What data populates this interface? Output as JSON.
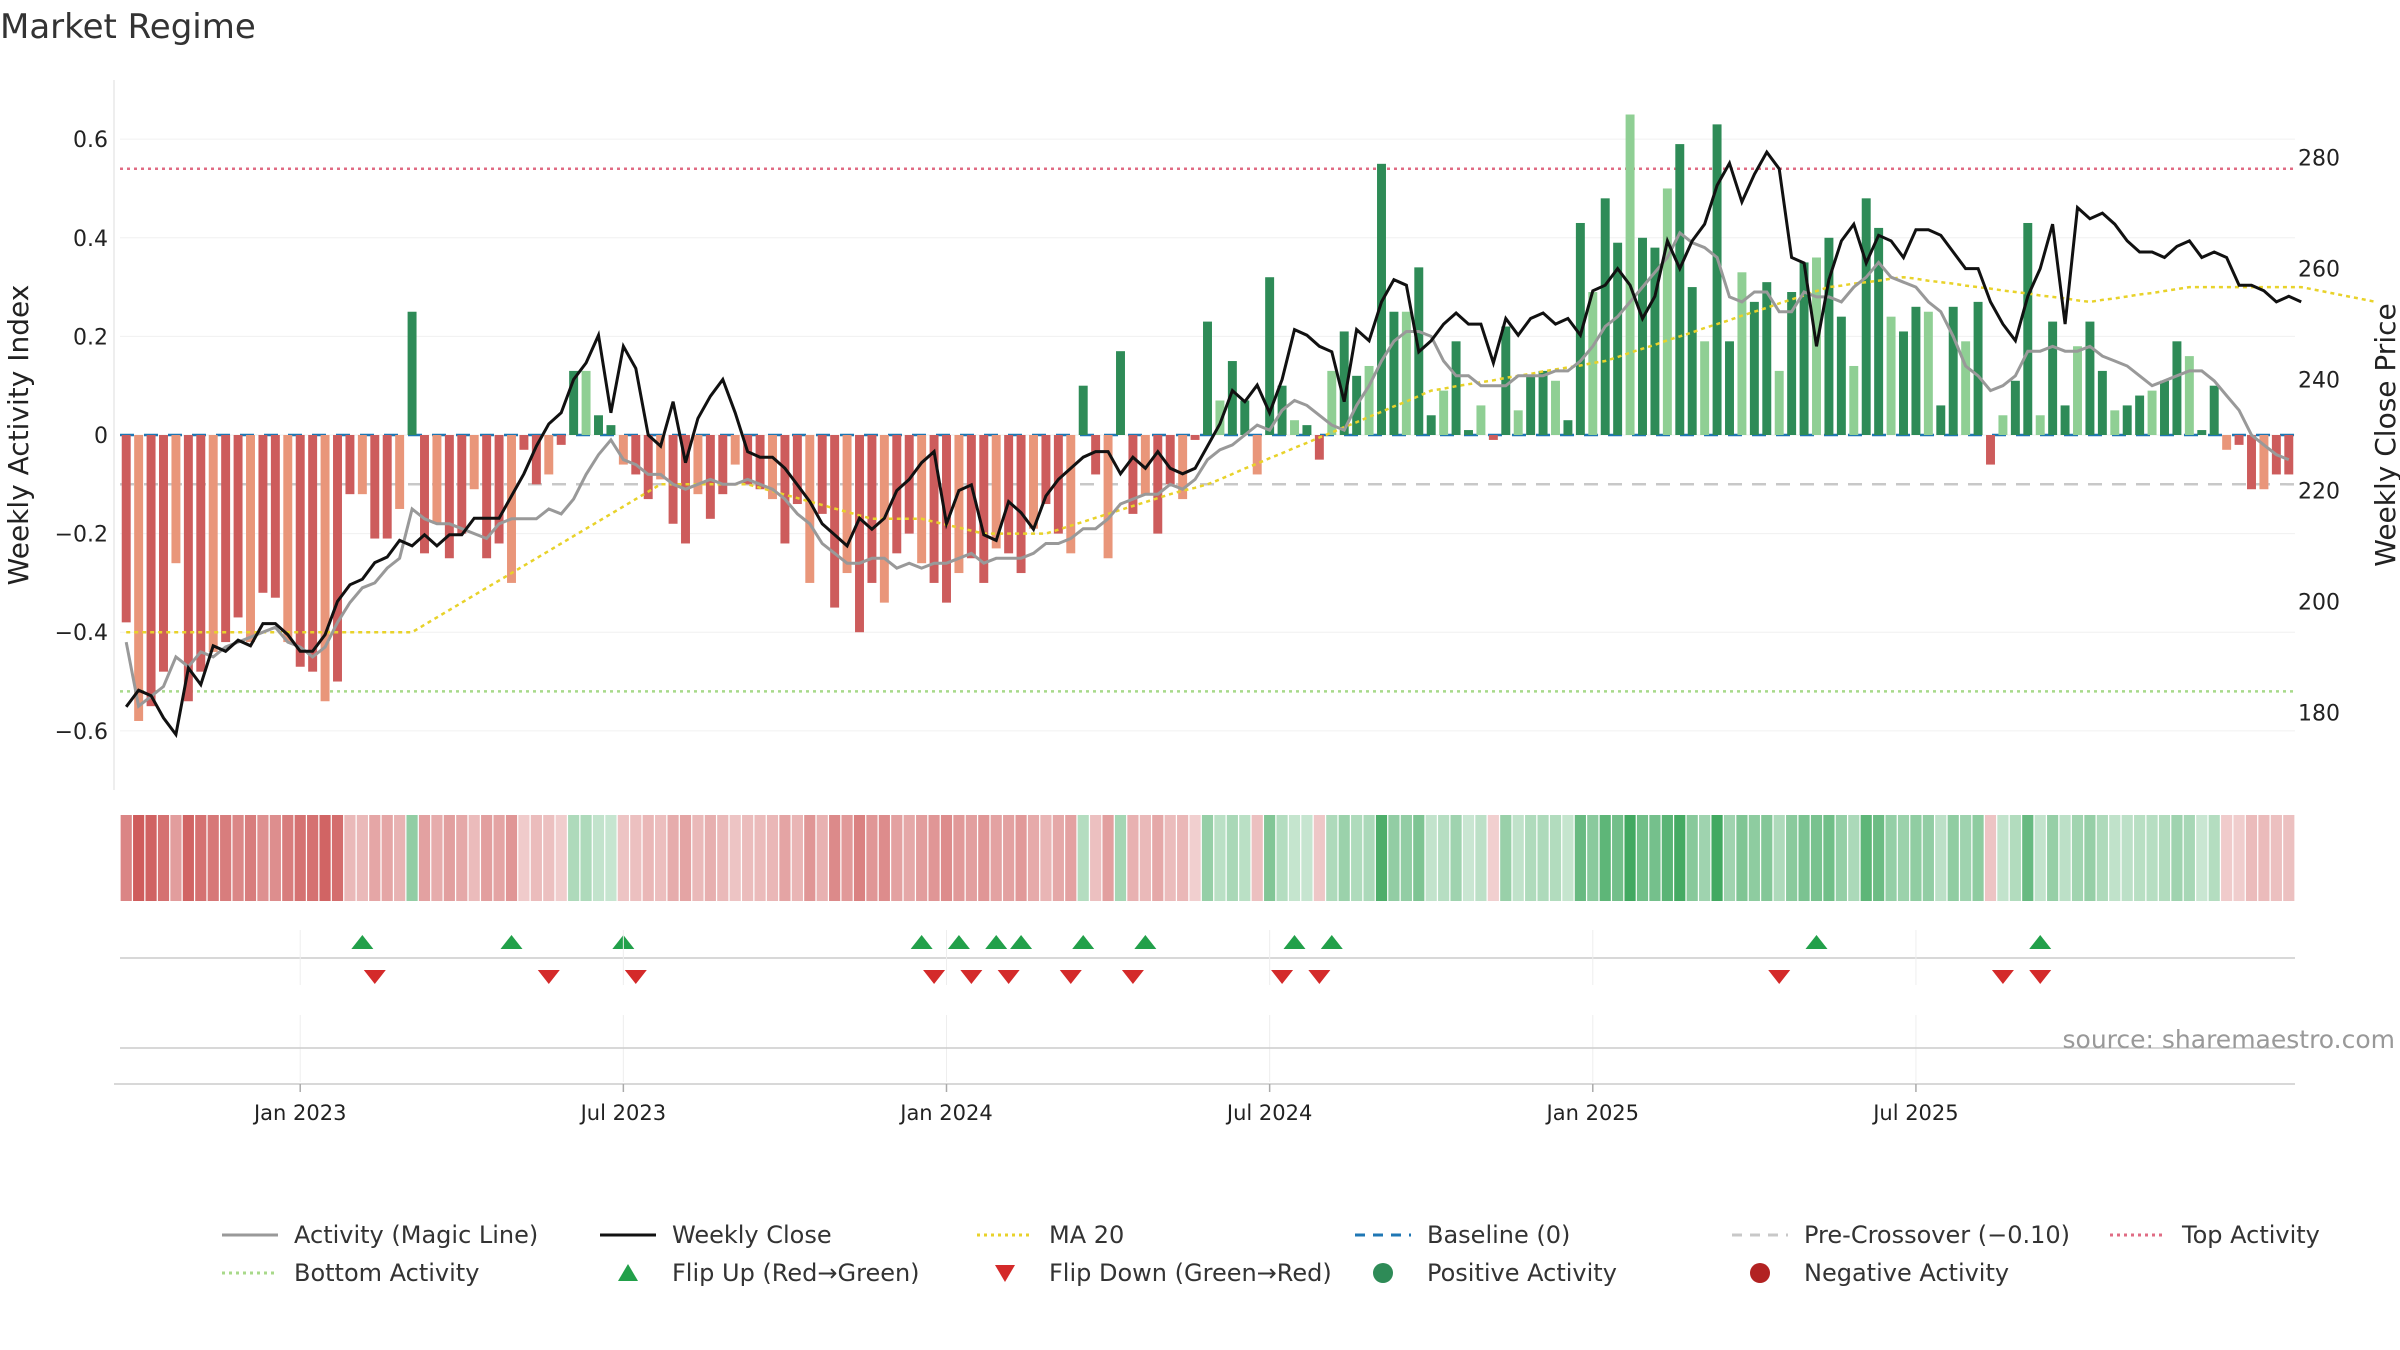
{
  "title": "Market Regime",
  "source": "source: sharemaestro.com",
  "colors": {
    "pos_strong": "#2e8b57",
    "pos_light": "#8fcf94",
    "neg_strong": "#cd5c5c",
    "neg_light": "#e9967a",
    "close": "#111111",
    "magic": "#999999",
    "ma": "#e8d22a",
    "baseline": "#1f77b4",
    "precross": "#c8c8c8",
    "top": "#e06c84",
    "bottom": "#a8d98a",
    "flip_up": "#22a04a",
    "flip_down": "#d42a2a"
  },
  "chart_data": {
    "type": "bar",
    "title": "Market Regime",
    "ylabel_left": "Weekly Activity Index",
    "ylabel_right": "Weekly Close Price",
    "ylim_left": [
      -0.72,
      0.72
    ],
    "ylim_right": [
      166,
      294
    ],
    "yticks_left": [
      "-0.6",
      "-0.4",
      "-0.2",
      "0",
      "0.2",
      "0.4",
      "0.6"
    ],
    "yticks_right": [
      "180",
      "200",
      "220",
      "240",
      "260",
      "280"
    ],
    "x_labels": [
      "Jan 2023",
      "Jul 2023",
      "Jan 2024",
      "Jul 2024",
      "Jan 2025",
      "Jul 2025"
    ],
    "levels": {
      "top_activity": 0.54,
      "bottom_activity": -0.52,
      "pre_crossover": -0.1,
      "baseline": 0
    },
    "grid": true,
    "legend_position": "bottom",
    "activity": [
      -0.38,
      -0.58,
      -0.55,
      -0.48,
      -0.26,
      -0.54,
      -0.48,
      -0.44,
      -0.42,
      -0.37,
      -0.42,
      -0.32,
      -0.33,
      -0.42,
      -0.47,
      -0.48,
      -0.54,
      -0.5,
      -0.12,
      -0.12,
      -0.21,
      -0.21,
      -0.15,
      0.25,
      -0.24,
      -0.18,
      -0.25,
      -0.2,
      -0.11,
      -0.25,
      -0.22,
      -0.3,
      -0.03,
      -0.1,
      -0.08,
      -0.02,
      0.13,
      0.13,
      0.04,
      0.02,
      -0.06,
      -0.08,
      -0.13,
      -0.09,
      -0.18,
      -0.22,
      -0.12,
      -0.17,
      -0.12,
      -0.06,
      -0.1,
      -0.11,
      -0.13,
      -0.22,
      -0.14,
      -0.3,
      -0.16,
      -0.35,
      -0.28,
      -0.4,
      -0.3,
      -0.34,
      -0.24,
      -0.2,
      -0.26,
      -0.3,
      -0.34,
      -0.28,
      -0.25,
      -0.3,
      -0.23,
      -0.24,
      -0.28,
      -0.19,
      -0.14,
      -0.2,
      -0.24,
      0.1,
      -0.08,
      -0.25,
      0.17,
      -0.16,
      -0.12,
      -0.2,
      -0.1,
      -0.13,
      -0.01,
      0.23,
      0.07,
      0.15,
      0.07,
      -0.08,
      0.32,
      0.1,
      0.03,
      0.02,
      -0.05,
      0.13,
      0.21,
      0.12,
      0.14,
      0.55,
      0.25,
      0.25,
      0.34,
      0.04,
      0.09,
      0.19,
      0.01,
      0.06,
      -0.01,
      0.22,
      0.05,
      0.12,
      0.13,
      0.11,
      0.03,
      0.43,
      0.29,
      0.48,
      0.39,
      0.65,
      0.4,
      0.38,
      0.5,
      0.59,
      0.3,
      0.19,
      0.63,
      0.19,
      0.33,
      0.27,
      0.31,
      0.13,
      0.29,
      0.35,
      0.36,
      0.4,
      0.24,
      0.14,
      0.48,
      0.42,
      0.24,
      0.21,
      0.26,
      0.25,
      0.06,
      0.26,
      0.19,
      0.27,
      -0.06,
      0.04,
      0.11,
      0.43,
      0.04,
      0.23,
      0.06,
      0.18,
      0.23,
      0.13,
      0.05,
      0.06,
      0.08,
      0.09,
      0.11,
      0.19,
      0.16,
      0.01,
      0.1,
      -0.03,
      -0.02,
      -0.11,
      -0.11,
      -0.08,
      -0.08
    ],
    "close": [
      181,
      184,
      183,
      179,
      176,
      188,
      185,
      192,
      191,
      193,
      192,
      196,
      196,
      194,
      191,
      191,
      194,
      200,
      203,
      204,
      207,
      208,
      211,
      210,
      212,
      210,
      212,
      212,
      215,
      215,
      215,
      219,
      223,
      228,
      232,
      234,
      240,
      243,
      248,
      234,
      246,
      242,
      230,
      228,
      236,
      225,
      233,
      237,
      240,
      234,
      227,
      226,
      226,
      224,
      221,
      218,
      214,
      212,
      210,
      215,
      213,
      215,
      220,
      222,
      225,
      227,
      214,
      220,
      221,
      212,
      211,
      218,
      216,
      213,
      219,
      222,
      224,
      226,
      227,
      227,
      223,
      226,
      224,
      227,
      224,
      223,
      224,
      228,
      232,
      238,
      236,
      239,
      234,
      240,
      249,
      248,
      246,
      245,
      236,
      249,
      247,
      254,
      258,
      257,
      245,
      247,
      250,
      252,
      250,
      250,
      243,
      251,
      248,
      251,
      252,
      250,
      251,
      248,
      256,
      257,
      260,
      257,
      251,
      255,
      265,
      260,
      265,
      268,
      275,
      279,
      272,
      277,
      281,
      278,
      262,
      261,
      246,
      258,
      265,
      268,
      261,
      266,
      265,
      262,
      267,
      267,
      266,
      263,
      260,
      260,
      254,
      250,
      247,
      255,
      260,
      268,
      250,
      271,
      269,
      270,
      268,
      265,
      263,
      263,
      262,
      264,
      265,
      262,
      263,
      262,
      257,
      257,
      256,
      254,
      255,
      254
    ],
    "magic": [
      -0.42,
      -0.55,
      -0.53,
      -0.51,
      -0.45,
      -0.47,
      -0.44,
      -0.45,
      -0.43,
      -0.42,
      -0.41,
      -0.4,
      -0.39,
      -0.42,
      -0.43,
      -0.45,
      -0.43,
      -0.38,
      -0.34,
      -0.31,
      -0.3,
      -0.27,
      -0.25,
      -0.15,
      -0.17,
      -0.18,
      -0.18,
      -0.19,
      -0.2,
      -0.21,
      -0.18,
      -0.17,
      -0.17,
      -0.17,
      -0.15,
      -0.16,
      -0.13,
      -0.08,
      -0.04,
      -0.01,
      -0.05,
      -0.06,
      -0.08,
      -0.08,
      -0.1,
      -0.11,
      -0.1,
      -0.09,
      -0.1,
      -0.1,
      -0.09,
      -0.1,
      -0.11,
      -0.13,
      -0.16,
      -0.18,
      -0.22,
      -0.24,
      -0.26,
      -0.26,
      -0.25,
      -0.25,
      -0.27,
      -0.26,
      -0.27,
      -0.26,
      -0.26,
      -0.25,
      -0.24,
      -0.26,
      -0.25,
      -0.25,
      -0.25,
      -0.24,
      -0.22,
      -0.22,
      -0.21,
      -0.19,
      -0.19,
      -0.17,
      -0.14,
      -0.13,
      -0.12,
      -0.12,
      -0.1,
      -0.11,
      -0.09,
      -0.05,
      -0.03,
      -0.02,
      0.0,
      0.02,
      0.01,
      0.05,
      0.07,
      0.06,
      0.04,
      0.02,
      0.01,
      0.06,
      0.1,
      0.15,
      0.19,
      0.21,
      0.21,
      0.2,
      0.15,
      0.12,
      0.12,
      0.1,
      0.1,
      0.1,
      0.12,
      0.12,
      0.12,
      0.13,
      0.13,
      0.15,
      0.18,
      0.22,
      0.24,
      0.27,
      0.3,
      0.33,
      0.36,
      0.41,
      0.39,
      0.38,
      0.36,
      0.28,
      0.27,
      0.29,
      0.29,
      0.25,
      0.25,
      0.29,
      0.28,
      0.28,
      0.27,
      0.3,
      0.32,
      0.35,
      0.32,
      0.31,
      0.3,
      0.27,
      0.25,
      0.2,
      0.14,
      0.12,
      0.09,
      0.1,
      0.12,
      0.17,
      0.17,
      0.18,
      0.17,
      0.17,
      0.18,
      0.16,
      0.15,
      0.14,
      0.12,
      0.1,
      0.11,
      0.12,
      0.13,
      0.13,
      0.11,
      0.08,
      0.05,
      0.0,
      -0.02,
      -0.04,
      -0.05
    ],
    "ma20": [
      -0.4,
      -0.4,
      -0.4,
      -0.4,
      -0.4,
      -0.4,
      -0.4,
      -0.4,
      -0.4,
      -0.4,
      -0.4,
      -0.4,
      -0.4,
      -0.4,
      -0.4,
      -0.4,
      -0.4,
      -0.4,
      -0.4,
      -0.4,
      -0.4,
      -0.4,
      -0.4,
      -0.4,
      -0.385,
      -0.37,
      -0.355,
      -0.34,
      -0.325,
      -0.31,
      -0.295,
      -0.28,
      -0.265,
      -0.25,
      -0.235,
      -0.22,
      -0.205,
      -0.19,
      -0.175,
      -0.16,
      -0.145,
      -0.13,
      -0.115,
      -0.1,
      -0.1,
      -0.1,
      -0.1,
      -0.1,
      -0.1,
      -0.1,
      -0.1,
      -0.107,
      -0.114,
      -0.121,
      -0.128,
      -0.135,
      -0.142,
      -0.149,
      -0.156,
      -0.163,
      -0.17,
      -0.17,
      -0.17,
      -0.17,
      -0.17,
      -0.176,
      -0.182,
      -0.188,
      -0.194,
      -0.2,
      -0.2,
      -0.2,
      -0.2,
      -0.2,
      -0.2,
      -0.192,
      -0.184,
      -0.176,
      -0.168,
      -0.16,
      -0.152,
      -0.144,
      -0.136,
      -0.128,
      -0.12,
      -0.113,
      -0.107,
      -0.1,
      -0.09,
      -0.079,
      -0.068,
      -0.058,
      -0.047,
      -0.037,
      -0.026,
      -0.016,
      -0.005,
      0.005,
      0.016,
      0.026,
      0.037,
      0.047,
      0.058,
      0.068,
      0.079,
      0.09,
      0.094,
      0.099,
      0.103,
      0.107,
      0.111,
      0.116,
      0.12,
      0.124,
      0.129,
      0.133,
      0.137,
      0.141,
      0.146,
      0.15,
      0.158,
      0.167,
      0.175,
      0.183,
      0.192,
      0.2,
      0.208,
      0.217,
      0.225,
      0.233,
      0.242,
      0.25,
      0.258,
      0.267,
      0.275,
      0.283,
      0.292,
      0.3,
      0.303,
      0.307,
      0.31,
      0.313,
      0.317,
      0.32,
      0.317,
      0.313,
      0.31,
      0.307,
      0.303,
      0.3,
      0.297,
      0.293,
      0.29,
      0.287,
      0.283,
      0.28,
      0.277,
      0.273,
      0.27,
      0.274,
      0.277,
      0.281,
      0.285,
      0.288,
      0.292,
      0.296,
      0.3,
      0.3,
      0.3,
      0.3,
      0.3,
      0.3,
      0.3,
      0.3,
      0.3,
      0.3,
      0.295,
      0.29,
      0.285,
      0.28,
      0.275,
      0.27
    ],
    "intensity": [
      3,
      3,
      3,
      3,
      3,
      3,
      3,
      3,
      3,
      3,
      3,
      3,
      3,
      3,
      3,
      3,
      3,
      3,
      1,
      1,
      1,
      1,
      1,
      2,
      1,
      1,
      1,
      1,
      1,
      1,
      1,
      1,
      1,
      1,
      1,
      1,
      2,
      2,
      1,
      1,
      1,
      1,
      1,
      1,
      1,
      1,
      1,
      1,
      1,
      1,
      1,
      1,
      1,
      1,
      1,
      1,
      1,
      1,
      1,
      1,
      1,
      1,
      1,
      1,
      1,
      1,
      1,
      1,
      1,
      1,
      1,
      1,
      1,
      1,
      1,
      1,
      1,
      1,
      1,
      1,
      1,
      1,
      1,
      1,
      1,
      1,
      1,
      1,
      1,
      1,
      1,
      1,
      1,
      1,
      1,
      1,
      1,
      1,
      1,
      1,
      1,
      1,
      1,
      1,
      1,
      1,
      1,
      1,
      1,
      1,
      1,
      1,
      1,
      1,
      1,
      1,
      1,
      1,
      1,
      1,
      1,
      1,
      1,
      1,
      1,
      1,
      1,
      1,
      1,
      1,
      1,
      1,
      1,
      1,
      1,
      1,
      1,
      1,
      1,
      1,
      1,
      1,
      1,
      1,
      1,
      1,
      1,
      1,
      1,
      1,
      1,
      1,
      1,
      1,
      1,
      1,
      1,
      1,
      1,
      1,
      1,
      1,
      1,
      1,
      1,
      1,
      1,
      1,
      1,
      1,
      1,
      1,
      1,
      1,
      1,
      1,
      1,
      1
    ],
    "flip_up_weeks": [
      19,
      31,
      40,
      64,
      67,
      70,
      72,
      77,
      82,
      94,
      97,
      136,
      154
    ],
    "flip_down_weeks": [
      20,
      34,
      41,
      65,
      68,
      71,
      76,
      81,
      93,
      96,
      133,
      151,
      154
    ]
  },
  "legend": [
    {
      "label": "Activity (Magic Line)",
      "kind": "line",
      "color": "#999999",
      "dash": ""
    },
    {
      "label": "Weekly Close",
      "kind": "line",
      "color": "#111111",
      "dash": ""
    },
    {
      "label": "MA 20",
      "kind": "line",
      "color": "#e8d22a",
      "dash": "3,4"
    },
    {
      "label": "Baseline (0)",
      "kind": "line",
      "color": "#1f77b4",
      "dash": "10,8"
    },
    {
      "label": "Pre-Crossover (−0.10)",
      "kind": "line",
      "color": "#c8c8c8",
      "dash": "10,8"
    },
    {
      "label": "Top Activity",
      "kind": "line",
      "color": "#e06c84",
      "dash": "3,4"
    },
    {
      "label": "Bottom Activity",
      "kind": "line",
      "color": "#a8d98a",
      "dash": "3,4"
    },
    {
      "label": "Flip Up (Red→Green)",
      "kind": "tri-up",
      "color": "#22a04a",
      "dash": ""
    },
    {
      "label": "Flip Down (Green→Red)",
      "kind": "tri-down",
      "color": "#d42a2a",
      "dash": ""
    },
    {
      "label": "Positive Activity",
      "kind": "dot",
      "color": "#2e8b57",
      "dash": ""
    },
    {
      "label": "Negative Activity",
      "kind": "dot",
      "color": "#b22222",
      "dash": ""
    }
  ]
}
